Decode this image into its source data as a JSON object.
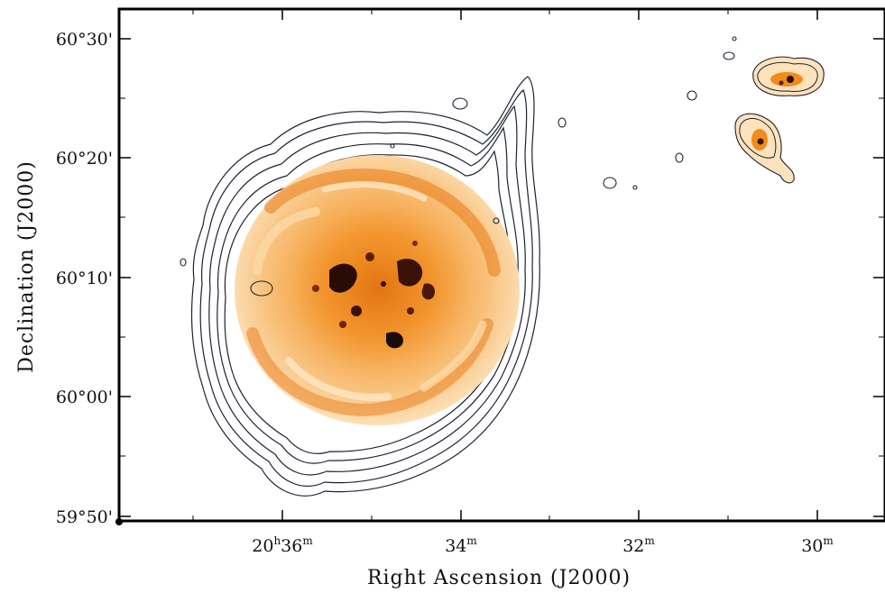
{
  "figure": {
    "x_axis_label": "Right Ascension (J2000)",
    "y_axis_label": "Declination (J2000)",
    "x_tick_labels": [
      {
        "text": "20h36m",
        "hours": 20,
        "minutes": 36
      },
      {
        "text": "34m",
        "minutes": 34
      },
      {
        "text": "32m",
        "minutes": 32
      },
      {
        "text": "30m",
        "minutes": 30
      }
    ],
    "y_tick_labels": [
      "60°30'",
      "60°20'",
      "60°10'",
      "60°00'",
      "59°50'"
    ],
    "colors": {
      "colormap_light": "#fde7c4",
      "colormap_mid": "#f39a2a",
      "colormap_dark": "#c34d0a",
      "colormap_peak": "#1a0a08",
      "contour": "#1c2330",
      "axes": "#000000"
    }
  }
}
